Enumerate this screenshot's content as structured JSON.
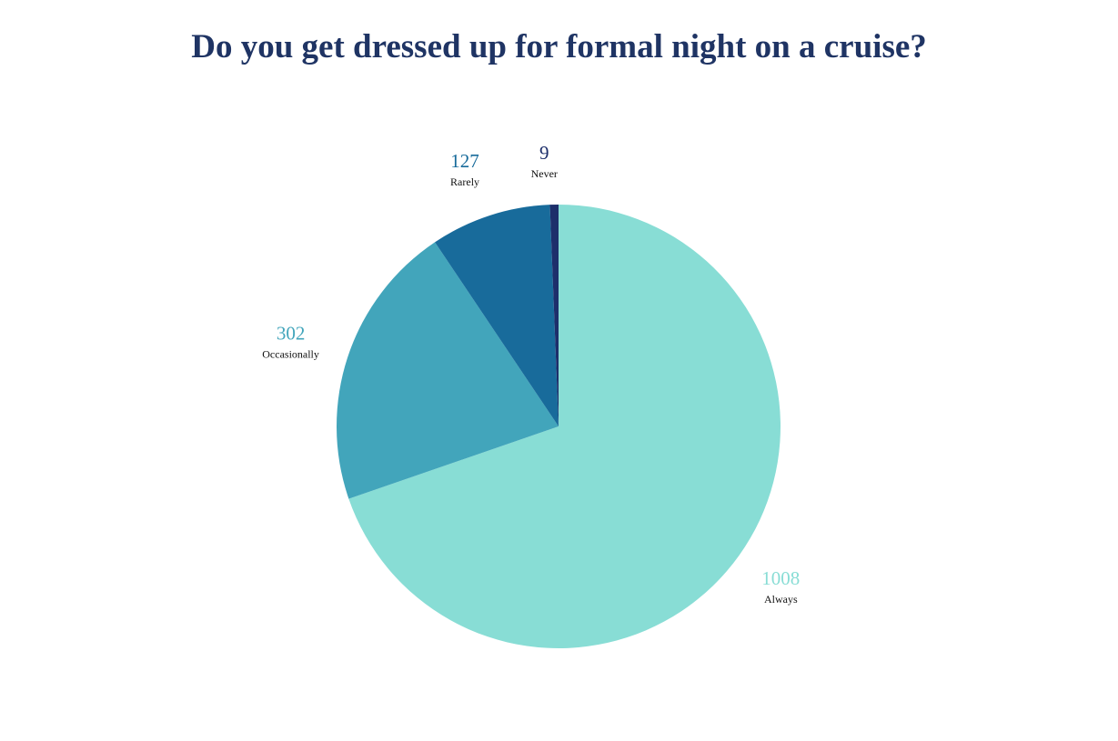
{
  "chart_data": {
    "type": "pie",
    "title": "Do you get dressed up for formal night on a cruise?",
    "categories": [
      "Always",
      "Occasionally",
      "Rarely",
      "Never"
    ],
    "values": [
      1008,
      302,
      127,
      9
    ],
    "colors": [
      "#88ddd5",
      "#42a5bb",
      "#186b9b",
      "#1d2f6b"
    ],
    "value_label_colors": [
      "#88ddd5",
      "#42a5bb",
      "#186b9b",
      "#1d2f6b"
    ],
    "title_color": "#1f3464",
    "start_angle_deg": 0,
    "direction": "clockwise",
    "legend": "none"
  }
}
